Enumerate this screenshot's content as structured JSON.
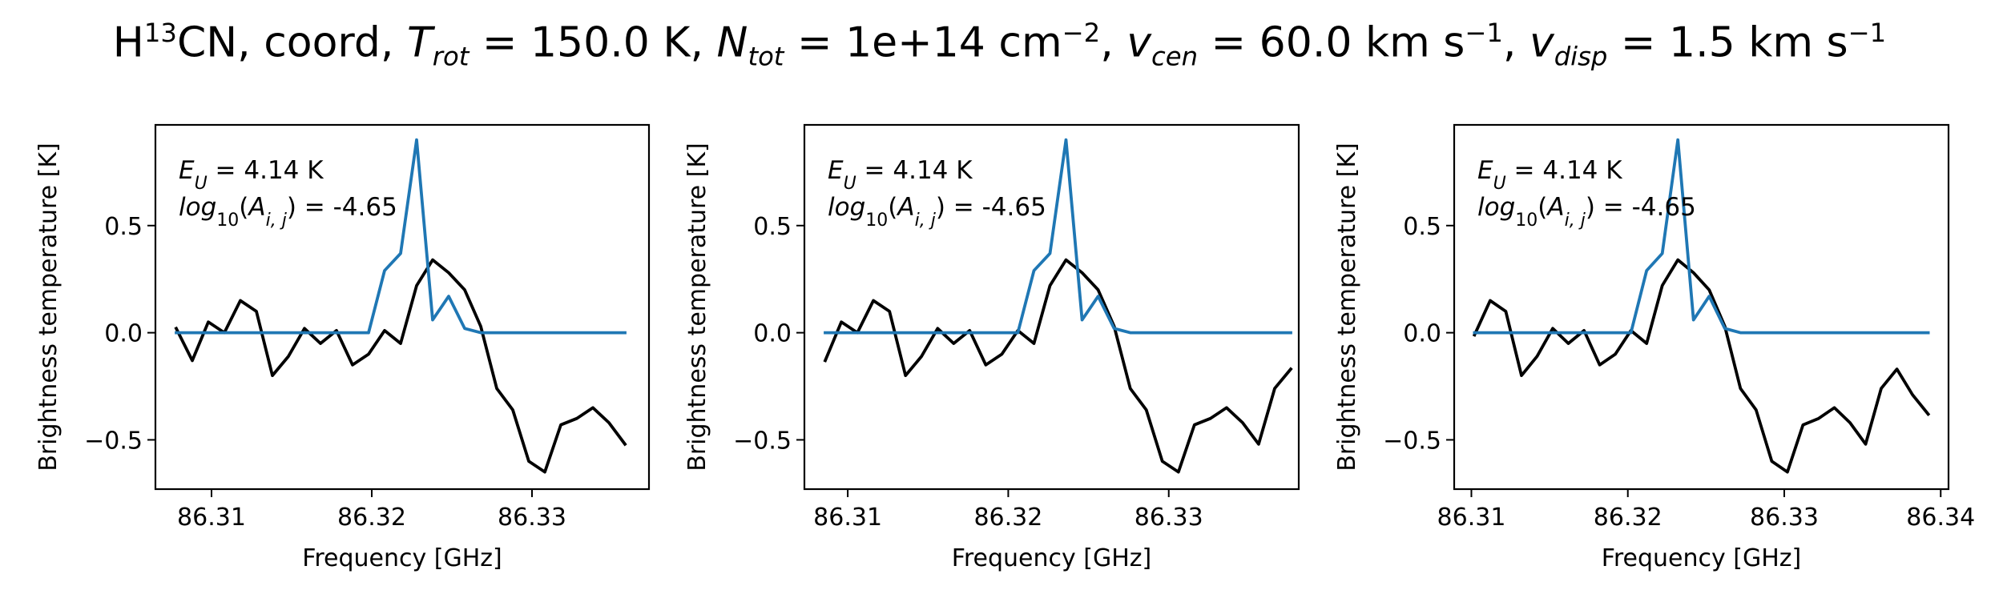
{
  "figure": {
    "title": {
      "molecule_prefix": "H",
      "isotope": "13",
      "molecule_suffix": "CN, coord, ",
      "trot_symbol": "T",
      "trot_sub": "rot",
      "trot_value": " =  150.0 K, ",
      "ntot_symbol": "N",
      "ntot_sub": "tot",
      "ntot_value": " =  1e+14 cm",
      "ntot_exp": "−2",
      "vcen_symbol": "v",
      "vcen_sub": "cen",
      "vcen_value": " =  60.0 km s",
      "vcen_exp": "−1",
      "vdisp_symbol": "v",
      "vdisp_sub": "disp",
      "vdisp_value": " =  1.5 km s",
      "vdisp_exp": "−1"
    }
  },
  "chart_data": [
    {
      "type": "line",
      "xlabel": "Frequency [GHz]",
      "ylabel": "Brightness temperature [K]",
      "xlim": [
        86.3065,
        86.3373
      ],
      "ylim": [
        -0.73,
        0.97
      ],
      "xticks": [
        86.31,
        86.32,
        86.33
      ],
      "xtick_labels": [
        "86.31",
        "86.32",
        "86.33"
      ],
      "yticks": [
        -0.5,
        0.0,
        0.5
      ],
      "ytick_labels": [
        "−0.5",
        "0.0",
        "0.5"
      ],
      "annotations": [
        "E_U = 4.14 K",
        "log10(A_i,j) = -4.65"
      ],
      "series": [
        {
          "color": "#000000",
          "x": [
            86.3078,
            86.3088,
            86.3098,
            86.3108,
            86.3118,
            86.3128,
            86.3138,
            86.3148,
            86.3158,
            86.3168,
            86.3178,
            86.3188,
            86.3198,
            86.3208,
            86.3218,
            86.3228,
            86.3238,
            86.3248,
            86.3258,
            86.3268,
            86.3278,
            86.3288,
            86.3298,
            86.3308,
            86.3318,
            86.3328,
            86.3338,
            86.3348,
            86.3358
          ],
          "y": [
            0.02,
            -0.13,
            0.05,
            0.0,
            0.15,
            0.1,
            -0.2,
            -0.11,
            0.02,
            -0.05,
            0.01,
            -0.15,
            -0.1,
            0.01,
            -0.05,
            0.22,
            0.34,
            0.28,
            0.2,
            0.03,
            -0.26,
            -0.36,
            -0.6,
            -0.65,
            -0.43,
            -0.4,
            -0.35,
            -0.42,
            -0.52
          ]
        },
        {
          "color": "#1f77b4",
          "x": [
            86.3078,
            86.3088,
            86.3098,
            86.3108,
            86.3118,
            86.3128,
            86.3138,
            86.3148,
            86.3158,
            86.3168,
            86.3178,
            86.3188,
            86.3198,
            86.3208,
            86.3218,
            86.3228,
            86.3238,
            86.3248,
            86.3258,
            86.3268,
            86.3278,
            86.3288,
            86.3298,
            86.3308,
            86.3318,
            86.3328,
            86.3338,
            86.3348,
            86.3358
          ],
          "y": [
            0,
            0,
            0,
            0,
            0,
            0,
            0,
            0,
            0,
            0,
            0,
            0,
            0,
            0.29,
            0.37,
            0.9,
            0.06,
            0.17,
            0.02,
            0,
            0,
            0,
            0,
            0,
            0,
            0,
            0,
            0,
            0
          ]
        }
      ]
    },
    {
      "type": "line",
      "xlabel": "Frequency [GHz]",
      "ylabel": "Brightness temperature [K]",
      "xlim": [
        86.3073,
        86.3381
      ],
      "ylim": [
        -0.73,
        0.97
      ],
      "xticks": [
        86.31,
        86.32,
        86.33
      ],
      "xtick_labels": [
        "86.31",
        "86.32",
        "86.33"
      ],
      "yticks": [
        -0.5,
        0.0,
        0.5
      ],
      "ytick_labels": [
        "−0.5",
        "0.0",
        "0.5"
      ],
      "annotations": [
        "E_U = 4.14 K",
        "log10(A_i,j) = -4.65"
      ],
      "series": [
        {
          "color": "#000000",
          "x": [
            86.3086,
            86.3096,
            86.3106,
            86.3116,
            86.3126,
            86.3136,
            86.3146,
            86.3156,
            86.3166,
            86.3176,
            86.3186,
            86.3196,
            86.3206,
            86.3216,
            86.3226,
            86.3236,
            86.3246,
            86.3256,
            86.3266,
            86.3276,
            86.3286,
            86.3296,
            86.3306,
            86.3316,
            86.3326,
            86.3336,
            86.3346,
            86.3356,
            86.3366,
            86.3376
          ],
          "y": [
            -0.13,
            0.05,
            0.0,
            0.15,
            0.1,
            -0.2,
            -0.11,
            0.02,
            -0.05,
            0.01,
            -0.15,
            -0.1,
            0.01,
            -0.05,
            0.22,
            0.34,
            0.28,
            0.2,
            0.03,
            -0.26,
            -0.36,
            -0.6,
            -0.65,
            -0.43,
            -0.4,
            -0.35,
            -0.42,
            -0.52,
            -0.26,
            -0.17
          ]
        },
        {
          "color": "#1f77b4",
          "x": [
            86.3086,
            86.3096,
            86.3106,
            86.3116,
            86.3126,
            86.3136,
            86.3146,
            86.3156,
            86.3166,
            86.3176,
            86.3186,
            86.3196,
            86.3206,
            86.3216,
            86.3226,
            86.3236,
            86.3246,
            86.3256,
            86.3266,
            86.3276,
            86.3286,
            86.3296,
            86.3306,
            86.3316,
            86.3326,
            86.3336,
            86.3346,
            86.3356,
            86.3366,
            86.3376
          ],
          "y": [
            0,
            0,
            0,
            0,
            0,
            0,
            0,
            0,
            0,
            0,
            0,
            0,
            0,
            0.29,
            0.37,
            0.9,
            0.06,
            0.17,
            0.02,
            0,
            0,
            0,
            0,
            0,
            0,
            0,
            0,
            0,
            0,
            0
          ]
        }
      ]
    },
    {
      "type": "line",
      "xlabel": "Frequency [GHz]",
      "ylabel": "Brightness temperature [K]",
      "xlim": [
        86.3089,
        86.3405
      ],
      "ylim": [
        -0.73,
        0.97
      ],
      "xticks": [
        86.31,
        86.32,
        86.33,
        86.34
      ],
      "xtick_labels": [
        "86.31",
        "86.32",
        "86.33",
        "86.34"
      ],
      "yticks": [
        -0.5,
        0.0,
        0.5
      ],
      "ytick_labels": [
        "−0.5",
        "0.0",
        "0.5"
      ],
      "annotations": [
        "E_U = 4.14 K",
        "log10(A_i,j) = -4.65"
      ],
      "series": [
        {
          "color": "#000000",
          "x": [
            86.3102,
            86.3112,
            86.3122,
            86.3132,
            86.3142,
            86.3152,
            86.3162,
            86.3172,
            86.3182,
            86.3192,
            86.3202,
            86.3212,
            86.3222,
            86.3232,
            86.3242,
            86.3252,
            86.3262,
            86.3272,
            86.3282,
            86.3292,
            86.3302,
            86.3312,
            86.3322,
            86.3332,
            86.3342,
            86.3352,
            86.3362,
            86.3372,
            86.3382,
            86.3392
          ],
          "y": [
            -0.01,
            0.15,
            0.1,
            -0.2,
            -0.11,
            0.02,
            -0.05,
            0.01,
            -0.15,
            -0.1,
            0.01,
            -0.05,
            0.22,
            0.34,
            0.28,
            0.2,
            0.03,
            -0.26,
            -0.36,
            -0.6,
            -0.65,
            -0.43,
            -0.4,
            -0.35,
            -0.42,
            -0.52,
            -0.26,
            -0.17,
            -0.29,
            -0.38
          ]
        },
        {
          "color": "#1f77b4",
          "x": [
            86.3102,
            86.3112,
            86.3122,
            86.3132,
            86.3142,
            86.3152,
            86.3162,
            86.3172,
            86.3182,
            86.3192,
            86.3202,
            86.3212,
            86.3222,
            86.3232,
            86.3242,
            86.3252,
            86.3262,
            86.3272,
            86.3282,
            86.3292,
            86.3302,
            86.3312,
            86.3322,
            86.3332,
            86.3342,
            86.3352,
            86.3362,
            86.3372,
            86.3382,
            86.3392
          ],
          "y": [
            0,
            0,
            0,
            0,
            0,
            0,
            0,
            0,
            0,
            0,
            0,
            0.29,
            0.37,
            0.9,
            0.06,
            0.17,
            0.02,
            0,
            0,
            0,
            0,
            0,
            0,
            0,
            0,
            0,
            0,
            0,
            0,
            0
          ]
        }
      ]
    }
  ]
}
